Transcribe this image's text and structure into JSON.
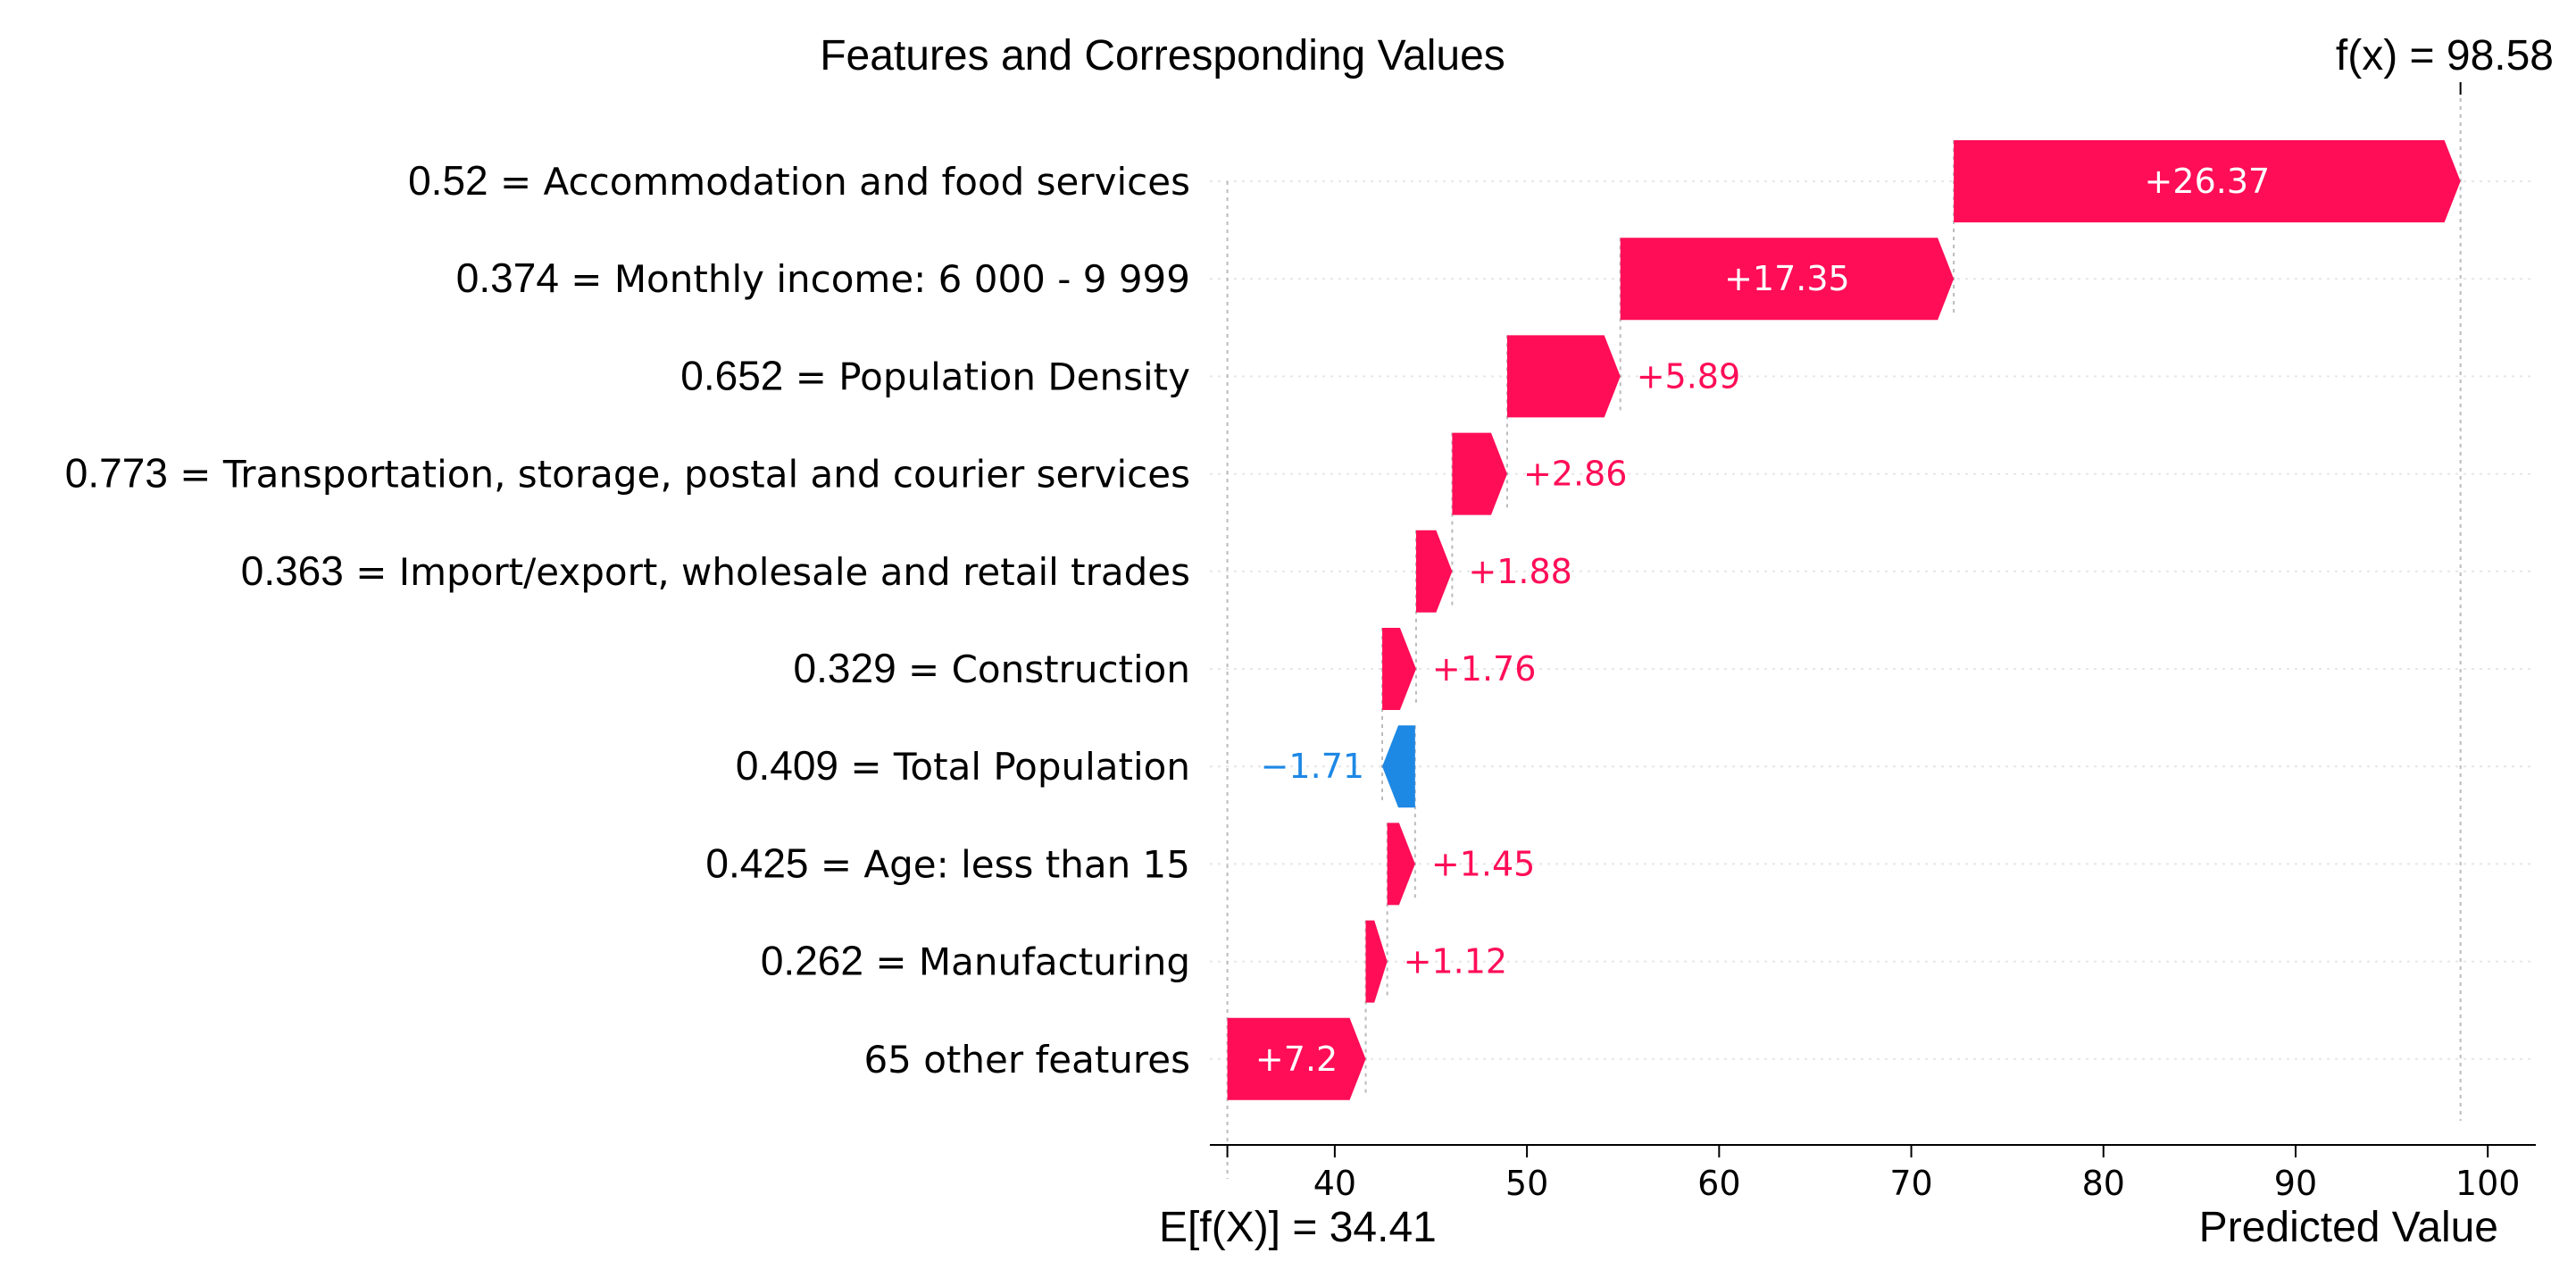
{
  "chart_data": {
    "type": "waterfall",
    "title": "Features and Corresponding Values",
    "fx_label": "f(x) = 98.58",
    "ex_label": "E[f(X)] = 34.41",
    "xlabel": "Predicted Value",
    "base_value": 34.41,
    "final_value": 98.58,
    "xlim": [
      33.5,
      102.5
    ],
    "xticks": [
      40,
      50,
      60,
      70,
      80,
      90,
      100
    ],
    "positive_color": "#ff0d57",
    "negative_color": "#1e88e5",
    "features": [
      {
        "value": "0.52",
        "name": "Accommodation and food services",
        "contribution": 26.37,
        "text": "+26.37"
      },
      {
        "value": "0.374",
        "name": "Monthly income: 6 000 - 9 999",
        "contribution": 17.35,
        "text": "+17.35"
      },
      {
        "value": "0.652",
        "name": "Population Density",
        "contribution": 5.89,
        "text": "+5.89"
      },
      {
        "value": "0.773",
        "name": "Transportation, storage, postal and courier services",
        "contribution": 2.86,
        "text": "+2.86"
      },
      {
        "value": "0.363",
        "name": "Import/export, wholesale and retail trades",
        "contribution": 1.88,
        "text": "+1.88"
      },
      {
        "value": "0.329",
        "name": "Construction",
        "contribution": 1.76,
        "text": "+1.76"
      },
      {
        "value": "0.409",
        "name": "Total Population",
        "contribution": -1.71,
        "text": "−1.71"
      },
      {
        "value": "0.425",
        "name": "Age: less than 15",
        "contribution": 1.45,
        "text": "+1.45"
      },
      {
        "value": "0.262",
        "name": "Manufacturing",
        "contribution": 1.12,
        "text": "+1.12"
      },
      {
        "value": "",
        "name": "65 other features",
        "contribution": 7.2,
        "text": "+7.2"
      }
    ]
  }
}
